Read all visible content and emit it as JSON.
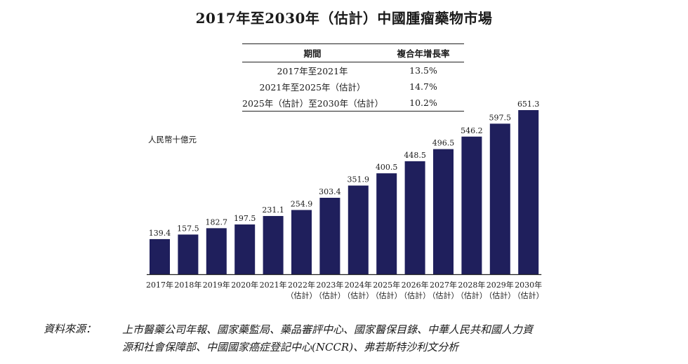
{
  "title": "2017年至2030年（估計）中國腫瘤藥物市場",
  "cagr_table": {
    "headers": [
      "期間",
      "複合年增長率"
    ],
    "rows": [
      {
        "period": "2017年至2021年",
        "rate": "13.5%"
      },
      {
        "period": "2021年至2025年（估計）",
        "rate": "14.7%"
      },
      {
        "period": "2025年（估計）至2030年（估計）",
        "rate": "10.2%"
      }
    ]
  },
  "source": {
    "label": "資料來源：",
    "line1": "上市醫藥公司年報、國家藥監局、藥品審評中心、國家醫保目錄、中華人民共和國人力資",
    "line2": "源和社會保障部、中國國家癌症登記中心(NCCR)、弗若斯特沙利文分析"
  },
  "chart_data": {
    "type": "bar",
    "ylabel": "人民幣十億元",
    "categories": [
      "2017年",
      "2018年",
      "2019年",
      "2020年",
      "2021年",
      "2022年",
      "2023年",
      "2024年",
      "2025年",
      "2026年",
      "2027年",
      "2028年",
      "2029年",
      "2030年"
    ],
    "category_sublabels": [
      "",
      "",
      "",
      "",
      "",
      "（估計）",
      "（估計）",
      "（估計）",
      "（估計）",
      "（估計）",
      "（估計）",
      "（估計）",
      "（估計）",
      "（估計）"
    ],
    "values": [
      139.4,
      157.5,
      182.7,
      197.5,
      231.1,
      254.9,
      303.4,
      351.9,
      400.5,
      448.5,
      496.5,
      546.2,
      597.5,
      651.3
    ],
    "value_labels": [
      "139.4",
      "157.5",
      "182.7",
      "197.5",
      "231.1",
      "254.9",
      "303.4",
      "351.9",
      "400.5",
      "448.5",
      "496.5",
      "546.2",
      "597.5",
      "651.3"
    ],
    "ylim": [
      0,
      651.3
    ],
    "grid": false,
    "legend": "none",
    "colors": {
      "bar": "#1f1f5c",
      "axis": "#222222"
    }
  }
}
